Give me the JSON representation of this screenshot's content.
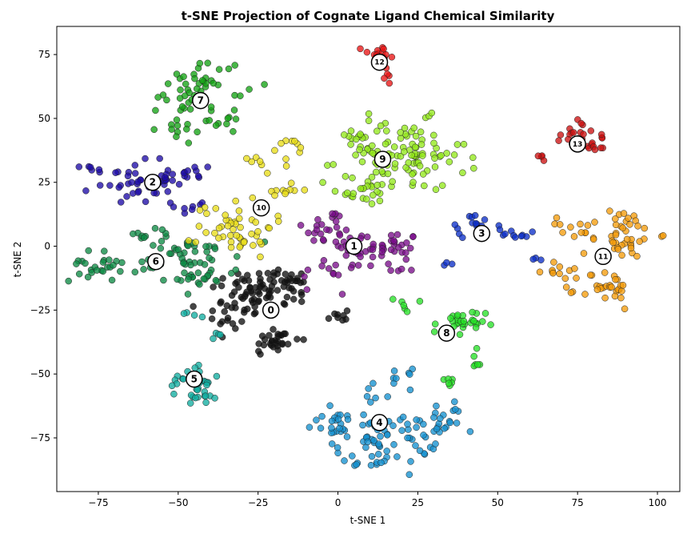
{
  "chart_data": {
    "type": "scatter",
    "title": "t-SNE Projection of Cognate Ligand Chemical Similarity",
    "xlabel": "t-SNE 1",
    "ylabel": "t-SNE 2",
    "xlim": [
      -88,
      107
    ],
    "ylim": [
      -96,
      86
    ],
    "xticks": [
      -75,
      -50,
      -25,
      0,
      25,
      50,
      75,
      100
    ],
    "yticks": [
      -75,
      -50,
      -25,
      0,
      25,
      50,
      75
    ],
    "xtick_labels": [
      "−75",
      "−50",
      "−25",
      "0",
      "25",
      "50",
      "75",
      "100"
    ],
    "ytick_labels": [
      "−75",
      "−50",
      "−25",
      "0",
      "25",
      "50",
      "75"
    ],
    "grid": false,
    "series": [
      {
        "name": "0",
        "color": "#111111",
        "label_pos": [
          -21,
          -25
        ],
        "blobs": [
          [
            -28,
            -18,
            6,
            5,
            45
          ],
          [
            -18,
            -16,
            5,
            4,
            30
          ],
          [
            -35,
            -27,
            4,
            3,
            15
          ],
          [
            -20,
            -37,
            4,
            3,
            30
          ],
          [
            0,
            -28,
            2,
            2,
            8
          ],
          [
            -13,
            -14,
            3,
            3,
            10
          ]
        ]
      },
      {
        "name": "1",
        "color": "#7a0e8a",
        "label_pos": [
          5,
          0
        ],
        "blobs": [
          [
            -3,
            7,
            4,
            4,
            25
          ],
          [
            6,
            -2,
            3,
            4,
            20
          ],
          [
            17,
            0,
            4,
            3,
            25
          ],
          [
            -5,
            -10,
            3,
            3,
            10
          ],
          [
            20,
            -8,
            3,
            3,
            8
          ]
        ]
      },
      {
        "name": "2",
        "color": "#1d0ca6",
        "label_pos": [
          -58,
          25
        ],
        "blobs": [
          [
            -64,
            25,
            6,
            4,
            40
          ],
          [
            -47,
            28,
            4,
            3,
            15
          ],
          [
            -46,
            16,
            3,
            2,
            8
          ],
          [
            -76,
            31,
            2,
            1,
            4
          ]
        ]
      },
      {
        "name": "3",
        "color": "#0d2fc8",
        "label_pos": [
          45,
          5
        ],
        "blobs": [
          [
            42,
            8,
            4,
            2,
            15
          ],
          [
            55,
            5,
            5,
            1,
            10
          ],
          [
            36,
            -6,
            2,
            2,
            3
          ],
          [
            62,
            -5,
            2,
            1,
            3
          ]
        ]
      },
      {
        "name": "4",
        "color": "#1591d0",
        "label_pos": [
          13,
          -69
        ],
        "blobs": [
          [
            15,
            -75,
            8,
            5,
            60
          ],
          [
            -2,
            -70,
            4,
            3,
            20
          ],
          [
            33,
            -68,
            3,
            4,
            20
          ],
          [
            12,
            -85,
            3,
            2,
            10
          ],
          [
            13,
            -56,
            3,
            2,
            8
          ],
          [
            19,
            -52,
            2,
            2,
            6
          ]
        ]
      },
      {
        "name": "5",
        "color": "#12ada0",
        "label_pos": [
          -45,
          -52
        ],
        "blobs": [
          [
            -42,
            -55,
            4,
            4,
            30
          ],
          [
            -51,
            -53,
            1,
            2,
            4
          ],
          [
            -46,
            -27,
            2,
            3,
            4
          ],
          [
            -38,
            -36,
            2,
            1,
            4
          ]
        ]
      },
      {
        "name": "6",
        "color": "#0e8a45",
        "label_pos": [
          -57,
          -6
        ],
        "blobs": [
          [
            -47,
            -5,
            8,
            5,
            60
          ],
          [
            -76,
            -8,
            4,
            3,
            25
          ],
          [
            -58,
            5,
            4,
            1,
            8
          ],
          [
            -44,
            -13,
            4,
            1,
            10
          ]
        ]
      },
      {
        "name": "7",
        "color": "#14a314",
        "label_pos": [
          -43,
          57
        ],
        "blobs": [
          [
            -41,
            64,
            6,
            5,
            40
          ],
          [
            -50,
            50,
            3,
            5,
            20
          ],
          [
            -34,
            50,
            3,
            3,
            10
          ]
        ]
      },
      {
        "name": "8",
        "color": "#28e028",
        "label_pos": [
          34,
          -34
        ],
        "blobs": [
          [
            38,
            -31,
            4,
            3,
            30
          ],
          [
            22,
            -23,
            2,
            2,
            6
          ],
          [
            43,
            -46,
            1,
            2,
            5
          ],
          [
            34,
            -53,
            2,
            1,
            6
          ]
        ]
      },
      {
        "name": "9",
        "color": "#93e81c",
        "label_pos": [
          14,
          34
        ],
        "blobs": [
          [
            20,
            35,
            10,
            7,
            110
          ],
          [
            8,
            22,
            5,
            3,
            20
          ],
          [
            4,
            43,
            3,
            2,
            10
          ]
        ]
      },
      {
        "name": "10",
        "color": "#e8dc18",
        "label_pos": [
          -24,
          15
        ],
        "blobs": [
          [
            -32,
            8,
            6,
            6,
            50
          ],
          [
            -16,
            22,
            3,
            2,
            10
          ],
          [
            -14,
            38,
            3,
            3,
            10
          ],
          [
            -24,
            33,
            2,
            1,
            5
          ]
        ]
      },
      {
        "name": "11",
        "color": "#f59c0c",
        "label_pos": [
          83,
          -4
        ],
        "blobs": [
          [
            88,
            5,
            6,
            5,
            45
          ],
          [
            84,
            -17,
            4,
            4,
            30
          ],
          [
            70,
            -9,
            3,
            2,
            10
          ],
          [
            72,
            7,
            3,
            2,
            8
          ]
        ]
      },
      {
        "name": "12",
        "color": "#e81414",
        "label_pos": [
          13,
          72
        ],
        "blobs": [
          [
            13,
            75,
            3,
            2,
            15
          ],
          [
            15,
            67,
            1,
            2,
            5
          ]
        ]
      },
      {
        "name": "13",
        "color": "#cc1212",
        "label_pos": [
          75,
          40
        ],
        "blobs": [
          [
            74,
            42,
            3,
            2,
            15
          ],
          [
            81,
            41,
            3,
            2,
            12
          ],
          [
            64,
            35,
            1,
            1,
            4
          ],
          [
            76,
            48,
            1,
            1,
            3
          ]
        ]
      }
    ]
  }
}
